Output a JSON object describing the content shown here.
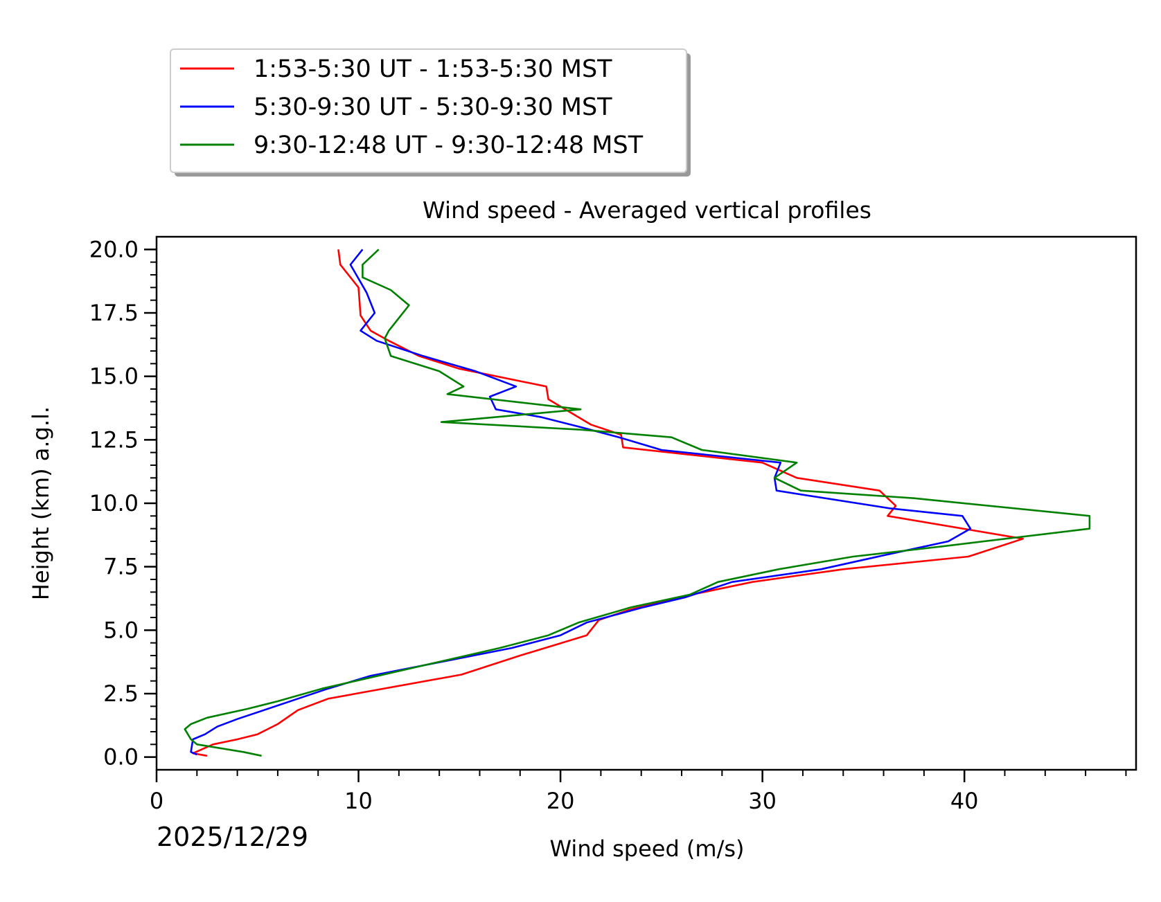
{
  "chart_data": {
    "type": "line",
    "title": "Wind speed - Averaged vertical profiles",
    "xlabel": "Wind speed (m/s)",
    "ylabel": "Height (km) a.g.l.",
    "date_label": "2025/12/29",
    "xlim": [
      0,
      48.5
    ],
    "ylim": [
      -0.5,
      20.5
    ],
    "xticks": [
      0,
      10,
      20,
      30,
      40
    ],
    "xtick_labels": [
      "0",
      "10",
      "20",
      "30",
      "40"
    ],
    "yticks": [
      0,
      2.5,
      5,
      7.5,
      10,
      12.5,
      15,
      17.5,
      20
    ],
    "ytick_labels": [
      "0.0",
      "2.5",
      "5.0",
      "7.5",
      "10.0",
      "12.5",
      "15.0",
      "17.5",
      "20.0"
    ],
    "x_minor_step": 2,
    "y_minor_step": 0.5,
    "legend_position": "upper-left-outside",
    "series": [
      {
        "name": "1:53-5:30 UT - 1:53-5:30 MST",
        "color": "#ff0000",
        "points": [
          [
            2.5,
            0.05
          ],
          [
            1.8,
            0.15
          ],
          [
            2.8,
            0.5
          ],
          [
            4.0,
            0.7
          ],
          [
            5.0,
            0.9
          ],
          [
            6.0,
            1.3
          ],
          [
            7.0,
            1.85
          ],
          [
            8.5,
            2.3
          ],
          [
            15.1,
            3.25
          ],
          [
            18.0,
            4.0
          ],
          [
            21.3,
            4.8
          ],
          [
            21.9,
            5.4
          ],
          [
            23.4,
            5.8
          ],
          [
            26.5,
            6.4
          ],
          [
            29.5,
            6.9
          ],
          [
            34.0,
            7.4
          ],
          [
            40.2,
            7.9
          ],
          [
            42.9,
            8.6
          ],
          [
            36.2,
            9.5
          ],
          [
            36.6,
            9.9
          ],
          [
            35.8,
            10.5
          ],
          [
            31.7,
            11.0
          ],
          [
            30.0,
            11.6
          ],
          [
            23.1,
            12.2
          ],
          [
            23.0,
            12.7
          ],
          [
            21.5,
            13.1
          ],
          [
            19.4,
            14.1
          ],
          [
            19.3,
            14.6
          ],
          [
            15.0,
            15.3
          ],
          [
            13.0,
            15.8
          ],
          [
            11.5,
            16.4
          ],
          [
            10.6,
            16.8
          ],
          [
            10.1,
            17.4
          ],
          [
            10.0,
            18.5
          ],
          [
            9.1,
            19.4
          ],
          [
            9.0,
            20.0
          ]
        ]
      },
      {
        "name": "5:30-9:30 UT - 5:30-9:30 MST",
        "color": "#0000ff",
        "points": [
          [
            2.0,
            0.1
          ],
          [
            1.7,
            0.2
          ],
          [
            1.8,
            0.7
          ],
          [
            2.4,
            0.9
          ],
          [
            3.0,
            1.2
          ],
          [
            4.0,
            1.5
          ],
          [
            5.5,
            1.9
          ],
          [
            7.0,
            2.3
          ],
          [
            8.5,
            2.7
          ],
          [
            10.6,
            3.2
          ],
          [
            17.6,
            4.3
          ],
          [
            20.0,
            4.8
          ],
          [
            21.3,
            5.3
          ],
          [
            24.1,
            5.9
          ],
          [
            26.2,
            6.3
          ],
          [
            28.5,
            6.9
          ],
          [
            32.9,
            7.4
          ],
          [
            36.3,
            8.0
          ],
          [
            39.2,
            8.5
          ],
          [
            40.3,
            9.0
          ],
          [
            39.9,
            9.5
          ],
          [
            36.3,
            9.8
          ],
          [
            30.7,
            10.5
          ],
          [
            30.6,
            11.0
          ],
          [
            30.9,
            11.6
          ],
          [
            25.0,
            12.1
          ],
          [
            22.9,
            12.6
          ],
          [
            21.0,
            13.0
          ],
          [
            19.0,
            13.4
          ],
          [
            16.8,
            13.7
          ],
          [
            16.5,
            14.2
          ],
          [
            17.8,
            14.6
          ],
          [
            15.8,
            15.2
          ],
          [
            13.2,
            15.8
          ],
          [
            10.9,
            16.4
          ],
          [
            10.1,
            16.8
          ],
          [
            10.8,
            17.5
          ],
          [
            10.4,
            18.3
          ],
          [
            9.6,
            19.4
          ],
          [
            10.2,
            20.0
          ]
        ]
      },
      {
        "name": "9:30-12:48 UT - 9:30-12:48 MST",
        "color": "#008000",
        "points": [
          [
            5.2,
            0.05
          ],
          [
            4.3,
            0.2
          ],
          [
            2.0,
            0.5
          ],
          [
            1.7,
            0.7
          ],
          [
            1.4,
            1.1
          ],
          [
            1.7,
            1.3
          ],
          [
            2.5,
            1.55
          ],
          [
            4.5,
            1.9
          ],
          [
            6.0,
            2.2
          ],
          [
            8.2,
            2.7
          ],
          [
            11.5,
            3.3
          ],
          [
            17.0,
            4.3
          ],
          [
            19.4,
            4.8
          ],
          [
            20.9,
            5.3
          ],
          [
            23.5,
            5.9
          ],
          [
            26.4,
            6.4
          ],
          [
            27.8,
            6.9
          ],
          [
            30.8,
            7.4
          ],
          [
            34.5,
            7.9
          ],
          [
            38.9,
            8.3
          ],
          [
            46.2,
            9.0
          ],
          [
            46.2,
            9.5
          ],
          [
            37.5,
            10.2
          ],
          [
            31.9,
            10.5
          ],
          [
            30.6,
            11.0
          ],
          [
            31.7,
            11.6
          ],
          [
            27.0,
            12.1
          ],
          [
            25.5,
            12.6
          ],
          [
            21.0,
            12.9
          ],
          [
            14.1,
            13.2
          ],
          [
            21.0,
            13.7
          ],
          [
            14.4,
            14.3
          ],
          [
            15.2,
            14.6
          ],
          [
            14.0,
            15.2
          ],
          [
            11.6,
            15.8
          ],
          [
            11.3,
            16.5
          ],
          [
            11.5,
            16.8
          ],
          [
            12.0,
            17.3
          ],
          [
            12.5,
            17.8
          ],
          [
            11.6,
            18.4
          ],
          [
            10.2,
            18.9
          ],
          [
            10.2,
            19.4
          ],
          [
            11.0,
            20.0
          ]
        ]
      }
    ]
  }
}
